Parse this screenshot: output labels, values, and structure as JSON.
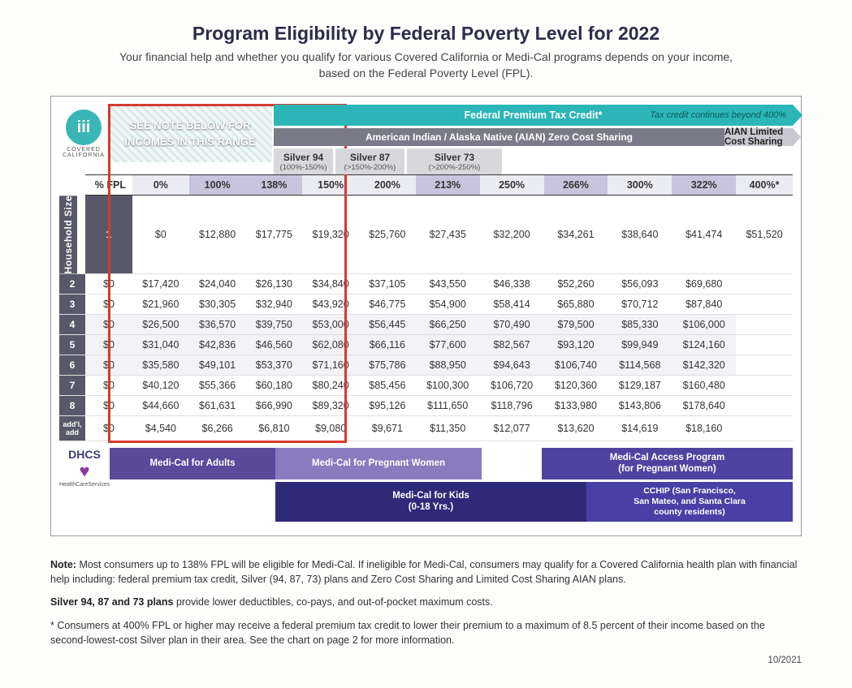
{
  "title": "Program Eligibility by Federal Poverty Level for 2022",
  "subtitle1": "Your financial help and whether you qualify for various Covered California or Medi-Cal programs depends on your income,",
  "subtitle2": "based on the Federal Poverty Level (FPL).",
  "logo_text": "COVERED CALIFORNIA",
  "note_banner": "SEE NOTE BELOW FOR INCOMES IN THIS RANGE",
  "bands": {
    "tax_credit": "Federal Premium Tax Credit*",
    "tax_credit_ext": "Tax credit continues beyond 400%",
    "aian_main": "American Indian / Alaska Native (AIAN) Zero Cost Sharing",
    "aian_limited": "AIAN Limited Cost Sharing",
    "silver94_name": "Silver 94",
    "silver94_rng": "(100%-150%)",
    "silver87_name": "Silver 87",
    "silver87_rng": "(>150%-200%)",
    "silver73_name": "Silver 73",
    "silver73_rng": "(>200%-250%)"
  },
  "columns": [
    "% FPL",
    "0%",
    "100%",
    "138%",
    "150%",
    "200%",
    "213%",
    "250%",
    "266%",
    "300%",
    "322%",
    "400%*"
  ],
  "highlight_cols": [
    2,
    3,
    6,
    8,
    10
  ],
  "side_label": "Household Size",
  "rows": [
    {
      "idx": "1",
      "v": [
        "$0",
        "$12,880",
        "$17,775",
        "$19,320",
        "$25,760",
        "$27,435",
        "$32,200",
        "$34,261",
        "$38,640",
        "$41,474",
        "$51,520"
      ]
    },
    {
      "idx": "2",
      "v": [
        "$0",
        "$17,420",
        "$24,040",
        "$26,130",
        "$34,840",
        "$37,105",
        "$43,550",
        "$46,338",
        "$52,260",
        "$56,093",
        "$69,680"
      ]
    },
    {
      "idx": "3",
      "v": [
        "$0",
        "$21,960",
        "$30,305",
        "$32,940",
        "$43,920",
        "$46,775",
        "$54,900",
        "$58,414",
        "$65,880",
        "$70,712",
        "$87,840"
      ]
    },
    {
      "idx": "4",
      "v": [
        "$0",
        "$26,500",
        "$36,570",
        "$39,750",
        "$53,000",
        "$56,445",
        "$66,250",
        "$70,490",
        "$79,500",
        "$85,330",
        "$106,000"
      ]
    },
    {
      "idx": "5",
      "v": [
        "$0",
        "$31,040",
        "$42,836",
        "$46,560",
        "$62,080",
        "$66,116",
        "$77,600",
        "$82,567",
        "$93,120",
        "$99,949",
        "$124,160"
      ]
    },
    {
      "idx": "6",
      "v": [
        "$0",
        "$35,580",
        "$49,101",
        "$53,370",
        "$71,160",
        "$75,786",
        "$88,950",
        "$94,643",
        "$106,740",
        "$114,568",
        "$142,320"
      ]
    },
    {
      "idx": "7",
      "v": [
        "$0",
        "$40,120",
        "$55,366",
        "$60,180",
        "$80,240",
        "$85,456",
        "$100,300",
        "$106,720",
        "$120,360",
        "$129,187",
        "$160,480"
      ]
    },
    {
      "idx": "8",
      "v": [
        "$0",
        "$44,660",
        "$61,631",
        "$66,990",
        "$89,320",
        "$95,126",
        "$111,650",
        "$118,796",
        "$133,980",
        "$143,806",
        "$178,640"
      ]
    },
    {
      "idx": "add'l, add",
      "v": [
        "$0",
        "$4,540",
        "$6,266",
        "$6,810",
        "$9,080",
        "$9,671",
        "$11,350",
        "$12,077",
        "$13,620",
        "$14,619",
        "$18,160"
      ]
    }
  ],
  "bottom": {
    "dhcs": "DHCS",
    "dhcs_sub": "HealthCareServices",
    "adults": "Medi-Cal for Adults",
    "preg": "Medi-Cal for Pregnant Women",
    "access_l1": "Medi-Cal Access Program",
    "access_l2": "(for Pregnant Women)",
    "kids_l1": "Medi-Cal for Kids",
    "kids_l2": "(0-18 Yrs.)",
    "cchip_l1": "CCHIP (San Francisco,",
    "cchip_l2": "San Mateo, and Santa Clara",
    "cchip_l3": "county residents)"
  },
  "notes": {
    "n1": "Note: Most consumers up to 138% FPL will be eligible for Medi-Cal. If ineligible for Medi-Cal, consumers may qualify for a Covered California health plan with financial help including: federal premium tax credit, Silver (94, 87, 73) plans and Zero Cost Sharing and Limited Cost Sharing AIAN plans.",
    "n2": "Silver 94, 87 and 73 plans provide lower deductibles, co-pays, and out-of-pocket maximum costs.",
    "n3": "* Consumers at 400% FPL or higher may receive a federal premium tax credit to lower their premium to a maximum of 8.5 percent of their income based on the second-lowest-cost Silver plan in their area. See the chart on page 2 for more information."
  },
  "date": "10/2021",
  "colors": {
    "teal": "#2cb5b7",
    "gray_band": "#7a7a88",
    "purple1": "#5a4a9a",
    "purple2": "#8a7bbf",
    "purple3": "#5043a0",
    "navy": "#2f2a78",
    "red_box": "#d43b2a"
  }
}
